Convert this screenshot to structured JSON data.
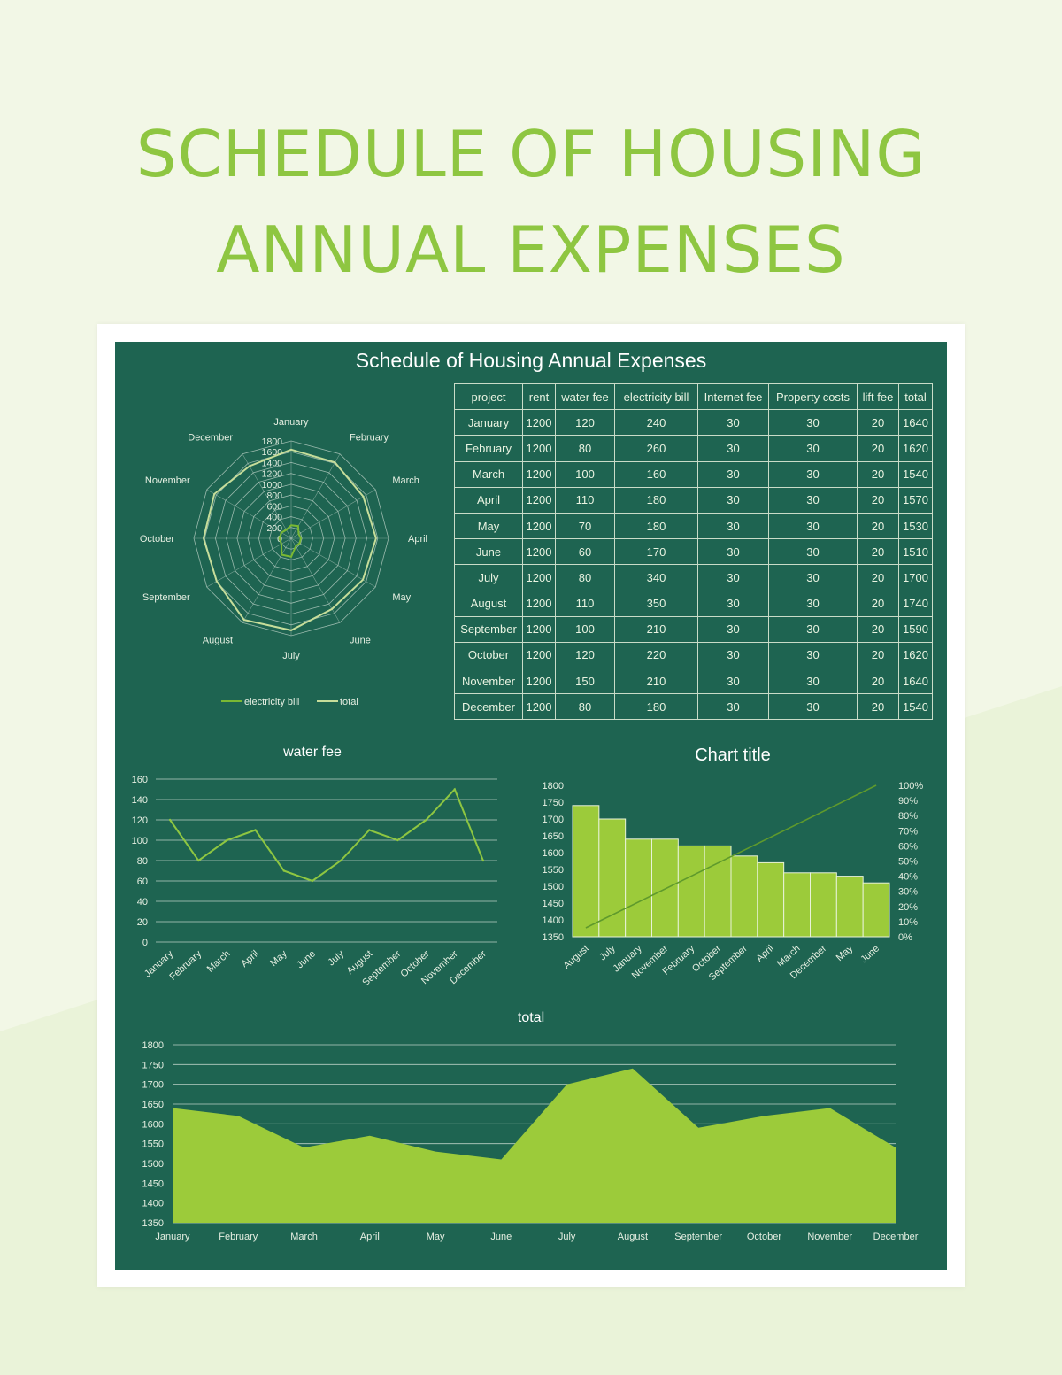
{
  "page": {
    "title_line1": "SCHEDULE OF HOUSING",
    "title_line2": "ANNUAL EXPENSES",
    "sheet_title": "Schedule of Housing Annual Expenses"
  },
  "colors": {
    "background": "#f2f7e6",
    "title": "#8ec641",
    "sheet": "#1e6451",
    "accent_green": "#9ccb3a",
    "line_green": "#8ec641",
    "radar_total": "#c6dd9a"
  },
  "table": {
    "headers": [
      "project",
      "rent",
      "water fee",
      "electricity bill",
      "Internet fee",
      "Property costs",
      "lift fee",
      "total"
    ],
    "rows": [
      [
        "January",
        "1200",
        "120",
        "240",
        "30",
        "30",
        "20",
        "1640"
      ],
      [
        "February",
        "1200",
        "80",
        "260",
        "30",
        "30",
        "20",
        "1620"
      ],
      [
        "March",
        "1200",
        "100",
        "160",
        "30",
        "30",
        "20",
        "1540"
      ],
      [
        "April",
        "1200",
        "110",
        "180",
        "30",
        "30",
        "20",
        "1570"
      ],
      [
        "May",
        "1200",
        "70",
        "180",
        "30",
        "30",
        "20",
        "1530"
      ],
      [
        "June",
        "1200",
        "60",
        "170",
        "30",
        "30",
        "20",
        "1510"
      ],
      [
        "July",
        "1200",
        "80",
        "340",
        "30",
        "30",
        "20",
        "1700"
      ],
      [
        "August",
        "1200",
        "110",
        "350",
        "30",
        "30",
        "20",
        "1740"
      ],
      [
        "September",
        "1200",
        "100",
        "210",
        "30",
        "30",
        "20",
        "1590"
      ],
      [
        "October",
        "1200",
        "120",
        "220",
        "30",
        "30",
        "20",
        "1620"
      ],
      [
        "November",
        "1200",
        "150",
        "210",
        "30",
        "30",
        "20",
        "1640"
      ],
      [
        "December",
        "1200",
        "80",
        "180",
        "30",
        "30",
        "20",
        "1540"
      ]
    ]
  },
  "chart_data": [
    {
      "type": "radar",
      "categories": [
        "January",
        "February",
        "March",
        "April",
        "May",
        "June",
        "July",
        "August",
        "September",
        "October",
        "November",
        "December"
      ],
      "series": [
        {
          "name": "electricity bill",
          "values": [
            240,
            260,
            160,
            180,
            180,
            170,
            340,
            350,
            210,
            220,
            210,
            180
          ]
        },
        {
          "name": "total",
          "values": [
            1640,
            1620,
            1540,
            1570,
            1530,
            1510,
            1700,
            1740,
            1590,
            1620,
            1640,
            1540
          ]
        }
      ],
      "rlim": [
        0,
        1800
      ],
      "ticks": [
        "0",
        "200",
        "400",
        "600",
        "800",
        "1000",
        "1200",
        "1400",
        "1600",
        "1800"
      ],
      "legend": "bottom",
      "grid": true
    },
    {
      "type": "line",
      "title": "water fee",
      "categories": [
        "January",
        "February",
        "March",
        "April",
        "May",
        "June",
        "July",
        "August",
        "September",
        "October",
        "November",
        "December"
      ],
      "values": [
        120,
        80,
        100,
        110,
        70,
        60,
        80,
        110,
        100,
        120,
        150,
        80
      ],
      "ylim": [
        0,
        160
      ],
      "yticks": [
        "0",
        "20",
        "40",
        "60",
        "80",
        "100",
        "120",
        "140",
        "160"
      ],
      "grid": true
    },
    {
      "type": "bar",
      "title": "Chart title",
      "categories": [
        "August",
        "July",
        "January",
        "November",
        "February",
        "October",
        "September",
        "April",
        "March",
        "December",
        "May",
        "June"
      ],
      "values": [
        1740,
        1700,
        1640,
        1640,
        1620,
        1620,
        1590,
        1570,
        1540,
        1540,
        1530,
        1510
      ],
      "ylim": [
        1350,
        1800
      ],
      "yticks": [
        "1350",
        "1400",
        "1450",
        "1500",
        "1550",
        "1600",
        "1650",
        "1700",
        "1750",
        "1800"
      ],
      "y2ticks": [
        "0%",
        "10%",
        "20%",
        "30%",
        "40%",
        "50%",
        "60%",
        "70%",
        "80%",
        "90%",
        "100%"
      ],
      "cumulative_line": [
        0,
        100
      ],
      "grid": true
    },
    {
      "type": "area",
      "title": "total",
      "categories": [
        "January",
        "February",
        "March",
        "April",
        "May",
        "June",
        "July",
        "August",
        "September",
        "October",
        "November",
        "December"
      ],
      "values": [
        1640,
        1620,
        1540,
        1570,
        1530,
        1510,
        1700,
        1740,
        1590,
        1620,
        1640,
        1540
      ],
      "ylim": [
        1350,
        1800
      ],
      "yticks": [
        "1350",
        "1400",
        "1450",
        "1500",
        "1550",
        "1600",
        "1650",
        "1700",
        "1750",
        "1800"
      ],
      "grid": true
    }
  ]
}
